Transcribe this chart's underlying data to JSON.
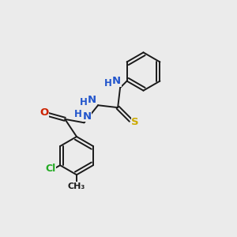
{
  "background_color": "#ebebeb",
  "bond_color": "#1a1a1a",
  "atom_colors": {
    "N": "#2255cc",
    "O": "#cc2200",
    "S": "#ccaa00",
    "Cl": "#22aa22",
    "C": "#1a1a1a",
    "H": "#2255cc"
  },
  "font_size": 8.5,
  "figsize": [
    3.0,
    3.0
  ],
  "dpi": 100,
  "lw": 1.4
}
